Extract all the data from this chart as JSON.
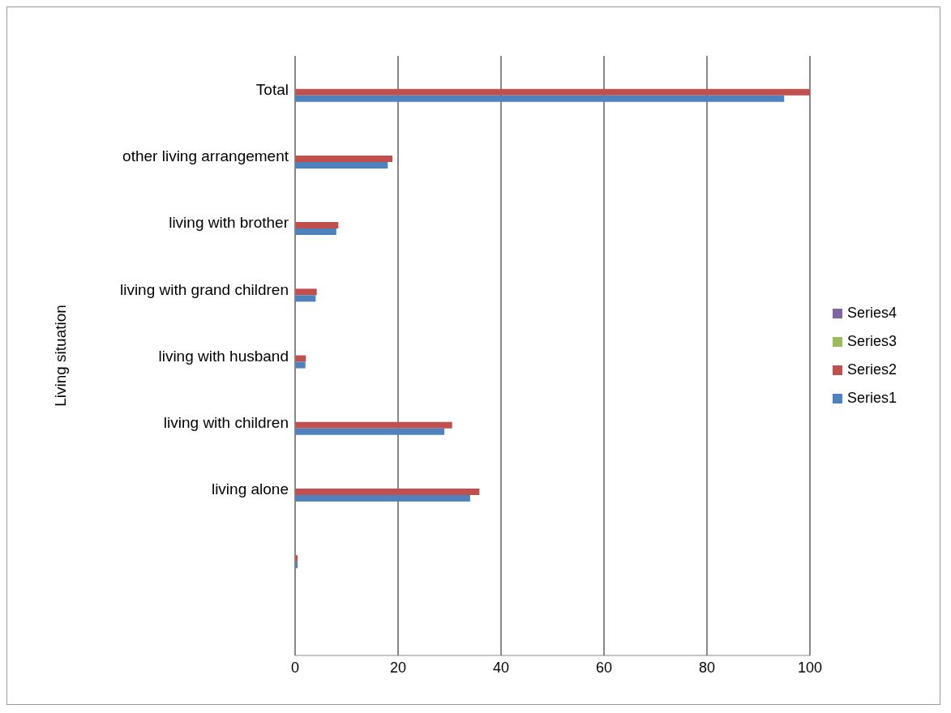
{
  "chart_data": {
    "type": "bar",
    "orientation": "horizontal",
    "ylabel": "Living situation",
    "categories": [
      "Total",
      "other living arrangement",
      "living with brother",
      "living with grand children",
      "living with husband",
      "living with children",
      "living alone",
      null,
      null
    ],
    "series": [
      {
        "name": "Series1",
        "color": "#4f81bd",
        "values": [
          95,
          18,
          8,
          4,
          2,
          29,
          34,
          0.5,
          null
        ]
      },
      {
        "name": "Series2",
        "color": "#c0504d",
        "values": [
          100,
          18.9,
          8.4,
          4.2,
          2.1,
          30.5,
          35.8,
          0.5,
          null
        ]
      },
      {
        "name": "Series3",
        "color": "#9bbb59",
        "values": [
          null,
          null,
          null,
          null,
          null,
          null,
          null,
          null,
          null
        ]
      },
      {
        "name": "Series4",
        "color": "#8064a2",
        "values": [
          null,
          null,
          null,
          null,
          null,
          null,
          null,
          null,
          null
        ]
      }
    ],
    "xlim": [
      0,
      100
    ],
    "xticks": [
      0,
      20,
      40,
      60,
      80,
      100
    ],
    "grid": "x",
    "legend": "right"
  }
}
